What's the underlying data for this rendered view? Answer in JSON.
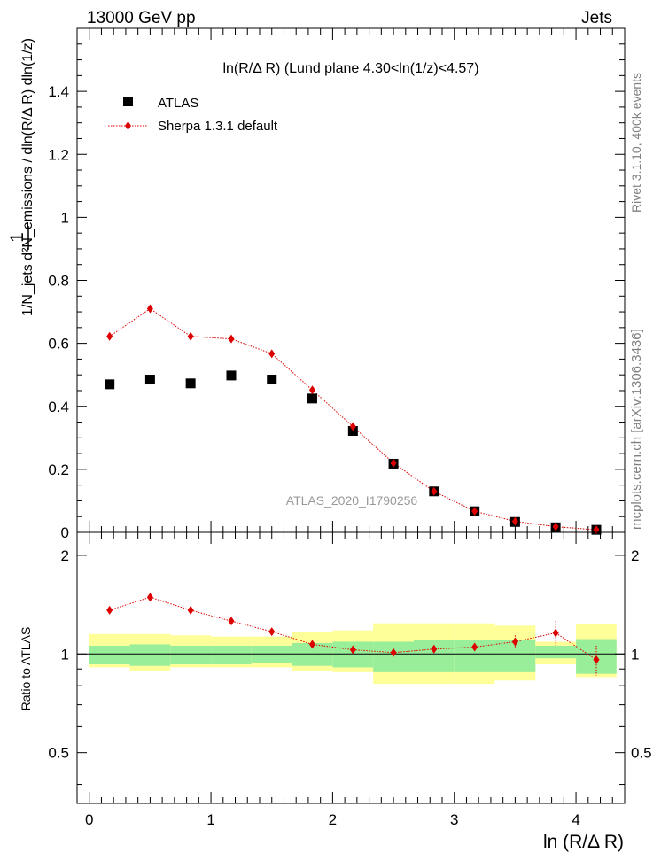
{
  "header": {
    "left": "13000 GeV pp",
    "right": "Jets"
  },
  "side": {
    "rivet": "Rivet 3.1.10,  400k events",
    "mcplots": "mcplots.cern.ch [arXiv:1306.3436]"
  },
  "chart_data": {
    "type": "scatter",
    "title": "ln(R/Δ R) (Lund plane 4.30<ln(1/z)<4.57)",
    "analysis_label": "ATLAS_2020_I1790256",
    "xlabel": "ln (R/Δ R)",
    "ylabel": "1/N_jets d²N_emissions / dln(R/Δ R) dln(1/z)",
    "ratio_ylabel": "Ratio to ATLAS",
    "xlim": [
      -0.1,
      4.4
    ],
    "ylim": [
      0,
      1.6
    ],
    "ratio_ylim": [
      0.35,
      2.35
    ],
    "xticks": [
      0,
      1,
      2,
      3,
      4
    ],
    "yticks": [
      0,
      0.2,
      0.4,
      0.6,
      0.8,
      1,
      1.2,
      1.4
    ],
    "ytick_labels": [
      "0",
      "0.2",
      "0.4",
      "0.6",
      "0.8",
      "1",
      "1.2",
      "1.4"
    ],
    "ratio_yticks": [
      0.5,
      1,
      2
    ],
    "ratio_ytick_labels": [
      "0.5",
      "1",
      "2"
    ],
    "legend": {
      "position": "top-left",
      "entries": [
        "ATLAS",
        "Sherpa 1.3.1 default"
      ]
    },
    "bin_edges": [
      0,
      0.333,
      0.667,
      1.0,
      1.333,
      1.667,
      2.0,
      2.333,
      2.667,
      3.0,
      3.333,
      3.667,
      4.0,
      4.333
    ],
    "x": [
      0.167,
      0.5,
      0.833,
      1.167,
      1.5,
      1.833,
      2.167,
      2.5,
      2.833,
      3.167,
      3.5,
      3.833,
      4.167
    ],
    "series": [
      {
        "name": "ATLAS",
        "values": [
          0.47,
          0.485,
          0.473,
          0.498,
          0.485,
          0.425,
          0.322,
          0.218,
          0.13,
          0.067,
          0.033,
          0.016,
          0.008
        ]
      },
      {
        "name": "Sherpa 1.3.1 default",
        "values": [
          0.622,
          0.71,
          0.622,
          0.614,
          0.567,
          0.452,
          0.336,
          0.22,
          0.13,
          0.067,
          0.035,
          0.018,
          0.008
        ]
      }
    ],
    "ratio": {
      "values": [
        1.36,
        1.49,
        1.36,
        1.26,
        1.17,
        1.07,
        1.03,
        1.01,
        1.035,
        1.05,
        1.09,
        1.16,
        0.96
      ],
      "errors": [
        0.01,
        0.01,
        0.01,
        0.01,
        0.01,
        0.01,
        0.01,
        0.015,
        0.02,
        0.02,
        0.05,
        0.1,
        0.1
      ],
      "band_green": [
        [
          0.93,
          1.06
        ],
        [
          0.92,
          1.07
        ],
        [
          0.93,
          1.06
        ],
        [
          0.93,
          1.06
        ],
        [
          0.94,
          1.06
        ],
        [
          0.92,
          1.08
        ],
        [
          0.91,
          1.09
        ],
        [
          0.88,
          1.09
        ],
        [
          0.88,
          1.1
        ],
        [
          0.88,
          1.1
        ],
        [
          0.88,
          1.1
        ],
        [
          0.97,
          1.06
        ],
        [
          0.87,
          1.11
        ]
      ],
      "band_yellow": [
        [
          0.91,
          1.15
        ],
        [
          0.89,
          1.15
        ],
        [
          0.91,
          1.14
        ],
        [
          0.91,
          1.13
        ],
        [
          0.91,
          1.13
        ],
        [
          0.89,
          1.17
        ],
        [
          0.88,
          1.18
        ],
        [
          0.81,
          1.24
        ],
        [
          0.81,
          1.24
        ],
        [
          0.81,
          1.24
        ],
        [
          0.83,
          1.22
        ],
        [
          0.93,
          1.09
        ],
        [
          0.85,
          1.23
        ]
      ]
    }
  }
}
